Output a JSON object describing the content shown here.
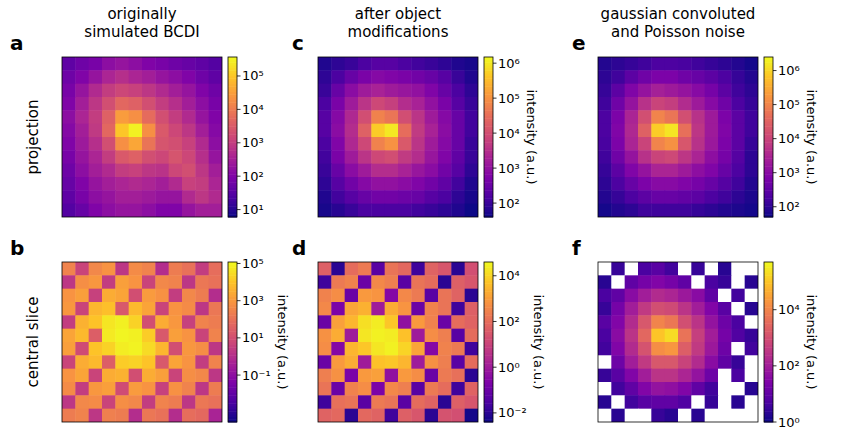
{
  "chart_data": [
    {
      "type": "heatmap",
      "panel": "a",
      "title": "originally simulated BCDI",
      "ylabel": "projection",
      "color": "plasma",
      "log": true,
      "tick_labels": false,
      "color_range": [
        6,
        370000
      ],
      "color_ticks": [
        {
          "value": 10,
          "label": "10¹"
        },
        {
          "value": 100,
          "label": "10²"
        },
        {
          "value": 1000,
          "label": "10³"
        },
        {
          "value": 10000,
          "label": "10⁴"
        },
        {
          "value": 100000,
          "label": "10⁵"
        }
      ],
      "cells": [
        [
          40,
          60,
          80,
          150,
          200,
          150,
          100,
          80,
          60,
          50,
          40,
          30
        ],
        [
          60,
          100,
          200,
          400,
          600,
          400,
          300,
          200,
          150,
          100,
          60,
          40
        ],
        [
          80,
          200,
          500,
          1000,
          1500,
          1200,
          800,
          500,
          300,
          200,
          100,
          60
        ],
        [
          100,
          300,
          800,
          2000,
          5000,
          4000,
          2000,
          1000,
          600,
          300,
          150,
          80
        ],
        [
          150,
          400,
          1000,
          4000,
          30000,
          20000,
          6000,
          2000,
          1000,
          500,
          200,
          100
        ],
        [
          120,
          300,
          900,
          5000,
          100000,
          300000,
          20000,
          3000,
          1500,
          800,
          300,
          120
        ],
        [
          100,
          250,
          600,
          2000,
          20000,
          40000,
          8000,
          2500,
          2000,
          1200,
          500,
          150
        ],
        [
          80,
          200,
          400,
          1000,
          3000,
          4000,
          2000,
          1500,
          2500,
          1500,
          600,
          200
        ],
        [
          60,
          150,
          300,
          500,
          1000,
          1200,
          800,
          700,
          1500,
          2000,
          800,
          300
        ],
        [
          50,
          100,
          200,
          300,
          400,
          500,
          400,
          300,
          500,
          1200,
          1000,
          400
        ],
        [
          40,
          80,
          150,
          200,
          300,
          300,
          250,
          200,
          200,
          500,
          800,
          500
        ],
        [
          30,
          50,
          100,
          150,
          200,
          200,
          150,
          100,
          100,
          200,
          300,
          300
        ]
      ]
    },
    {
      "type": "heatmap",
      "panel": "b",
      "ylabel": "central slice",
      "color": "plasma",
      "log": true,
      "tick_labels": false,
      "color_range": [
        0.0003,
        120000
      ],
      "color_label": "intensity (a.u.)",
      "color_ticks": [
        {
          "value": 0.1,
          "label": "10⁻¹"
        },
        {
          "value": 10,
          "label": "10¹"
        },
        {
          "value": 1000,
          "label": "10³"
        },
        {
          "value": 100000,
          "label": "10⁵"
        }
      ],
      "cells": [
        [
          300,
          5,
          400,
          800,
          2,
          500,
          300,
          1,
          200,
          100,
          3,
          80
        ],
        [
          2,
          600,
          1000,
          3,
          1500,
          800,
          5,
          400,
          300,
          2,
          150,
          100
        ],
        [
          800,
          1500,
          4,
          3000,
          2000,
          10,
          1200,
          700,
          3,
          400,
          200,
          1
        ],
        [
          1000,
          5,
          5000,
          8000,
          20,
          6000,
          2000,
          5,
          800,
          500,
          2,
          150
        ],
        [
          3,
          4000,
          10000,
          50000,
          80000,
          20000,
          10,
          3000,
          1000,
          4,
          300,
          200
        ],
        [
          2000,
          6000,
          30,
          60000,
          100000,
          80000,
          15000,
          20,
          1500,
          800,
          5,
          300
        ],
        [
          1500,
          8,
          10000,
          20000,
          70000,
          90000,
          30000,
          5000,
          10,
          1000,
          600,
          2
        ],
        [
          5,
          3000,
          6000,
          30,
          15000,
          20000,
          10000,
          20,
          2000,
          800,
          3,
          300
        ],
        [
          800,
          2000,
          5,
          3000,
          4000,
          10,
          3000,
          1500,
          5,
          600,
          400,
          2
        ],
        [
          500,
          3,
          1000,
          1500,
          8,
          1200,
          800,
          4,
          700,
          300,
          2,
          200
        ],
        [
          2,
          400,
          500,
          5,
          600,
          400,
          3,
          300,
          200,
          2,
          150,
          100
        ],
        [
          200,
          300,
          2,
          250,
          200,
          1,
          150,
          100,
          1,
          80,
          60,
          0.5
        ]
      ]
    },
    {
      "type": "heatmap",
      "panel": "c",
      "title": "after object modifications",
      "color": "plasma",
      "log": true,
      "tick_labels": false,
      "color_range": [
        40,
        1500000
      ],
      "color_label": "intensity (a.u.)",
      "color_ticks": [
        {
          "value": 100,
          "label": "10²"
        },
        {
          "value": 1000,
          "label": "10³"
        },
        {
          "value": 10000,
          "label": "10⁴"
        },
        {
          "value": 100000,
          "label": "10⁵"
        },
        {
          "value": 1000000,
          "label": "10⁶"
        }
      ],
      "cells": [
        [
          60,
          80,
          100,
          150,
          200,
          200,
          150,
          120,
          100,
          80,
          60,
          50
        ],
        [
          80,
          150,
          300,
          500,
          700,
          600,
          500,
          400,
          300,
          200,
          100,
          60
        ],
        [
          100,
          300,
          800,
          1500,
          2000,
          1500,
          1200,
          1000,
          600,
          300,
          150,
          80
        ],
        [
          150,
          500,
          1500,
          4000,
          8000,
          6000,
          3000,
          2000,
          1000,
          500,
          200,
          100
        ],
        [
          200,
          700,
          2500,
          10000,
          60000,
          40000,
          10000,
          4000,
          1500,
          700,
          300,
          120
        ],
        [
          200,
          800,
          3000,
          20000,
          500000,
          1000000,
          30000,
          5000,
          2000,
          800,
          300,
          120
        ],
        [
          150,
          600,
          2500,
          8000,
          60000,
          100000,
          15000,
          4000,
          1500,
          700,
          300,
          100
        ],
        [
          120,
          500,
          1500,
          4000,
          8000,
          10000,
          5000,
          3000,
          1200,
          600,
          250,
          100
        ],
        [
          100,
          300,
          800,
          1500,
          3000,
          3000,
          2000,
          1200,
          800,
          400,
          200,
          80
        ],
        [
          80,
          200,
          400,
          700,
          1000,
          1000,
          800,
          600,
          400,
          250,
          120,
          60
        ],
        [
          60,
          120,
          200,
          300,
          400,
          400,
          350,
          300,
          200,
          150,
          80,
          50
        ],
        [
          50,
          70,
          100,
          150,
          150,
          150,
          150,
          120,
          100,
          80,
          60,
          40
        ]
      ]
    },
    {
      "type": "heatmap",
      "panel": "d",
      "color": "plasma",
      "log": true,
      "tick_labels": false,
      "color_range": [
        0.004,
        40000
      ],
      "color_label": "intensity (a.u.)",
      "color_ticks": [
        {
          "value": 0.01,
          "label": "10⁻²"
        },
        {
          "value": 1,
          "label": "10⁰"
        },
        {
          "value": 100,
          "label": "10²"
        },
        {
          "value": 10000,
          "label": "10⁴"
        }
      ],
      "cells": [
        [
          50,
          0.01,
          100,
          200,
          0.05,
          150,
          80,
          0.02,
          60,
          30,
          0.01,
          20
        ],
        [
          0.02,
          200,
          300,
          0.1,
          400,
          250,
          0.05,
          150,
          100,
          0.01,
          50,
          30
        ],
        [
          300,
          500,
          0.1,
          900,
          700,
          0.3,
          400,
          200,
          0.05,
          150,
          60,
          0.01
        ],
        [
          400,
          0.2,
          1500,
          2500,
          1,
          2000,
          700,
          0.1,
          300,
          150,
          0.02,
          50
        ],
        [
          0.1,
          1200,
          3000,
          15000,
          25000,
          6000,
          0.5,
          900,
          300,
          0.1,
          100,
          60
        ],
        [
          600,
          2000,
          1,
          20000,
          30000,
          25000,
          5000,
          1,
          500,
          250,
          0.05,
          100
        ],
        [
          500,
          0.3,
          3000,
          6000,
          20000,
          30000,
          10000,
          1500,
          0.3,
          300,
          200,
          0.02
        ],
        [
          0.1,
          900,
          2000,
          1,
          5000,
          6000,
          3000,
          1,
          600,
          250,
          0.05,
          100
        ],
        [
          250,
          600,
          0.2,
          900,
          1200,
          0.5,
          900,
          500,
          0.1,
          200,
          120,
          0.01
        ],
        [
          150,
          0.1,
          300,
          500,
          0.2,
          400,
          250,
          0.05,
          200,
          100,
          0.02,
          60
        ],
        [
          0.02,
          120,
          150,
          0.05,
          200,
          150,
          0.05,
          100,
          60,
          0.01,
          50,
          30
        ],
        [
          60,
          80,
          0.01,
          80,
          60,
          0.02,
          50,
          30,
          0.01,
          25,
          20,
          0.005
        ]
      ]
    },
    {
      "type": "heatmap",
      "panel": "e",
      "title": "gaussian convoluted and Poisson noise",
      "color": "plasma",
      "log": true,
      "tick_labels": false,
      "color_range": [
        50,
        2500000
      ],
      "color_label": "intensity (a.u.)",
      "color_ticks": [
        {
          "value": 100,
          "label": "10²"
        },
        {
          "value": 1000,
          "label": "10³"
        },
        {
          "value": 10000,
          "label": "10⁴"
        },
        {
          "value": 100000,
          "label": "10⁵"
        },
        {
          "value": 1000000,
          "label": "10⁶"
        }
      ],
      "cells": [
        [
          80,
          100,
          120,
          150,
          200,
          200,
          180,
          150,
          120,
          100,
          80,
          60
        ],
        [
          100,
          150,
          300,
          500,
          700,
          700,
          500,
          400,
          300,
          200,
          120,
          80
        ],
        [
          120,
          300,
          800,
          1500,
          2500,
          2000,
          1500,
          1000,
          600,
          300,
          150,
          100
        ],
        [
          150,
          500,
          1500,
          5000,
          10000,
          8000,
          4000,
          2000,
          1000,
          500,
          200,
          120
        ],
        [
          200,
          700,
          3000,
          15000,
          100000,
          60000,
          15000,
          5000,
          2000,
          700,
          300,
          150
        ],
        [
          200,
          800,
          3500,
          30000,
          800000,
          1500000,
          50000,
          6000,
          2000,
          800,
          300,
          150
        ],
        [
          180,
          700,
          3000,
          10000,
          100000,
          150000,
          20000,
          5000,
          1800,
          700,
          300,
          120
        ],
        [
          150,
          500,
          1500,
          5000,
          10000,
          12000,
          6000,
          3000,
          1200,
          600,
          250,
          100
        ],
        [
          120,
          300,
          800,
          1500,
          3000,
          3000,
          2000,
          1200,
          800,
          400,
          200,
          100
        ],
        [
          100,
          200,
          400,
          700,
          1000,
          1000,
          800,
          600,
          400,
          250,
          150,
          80
        ],
        [
          80,
          120,
          200,
          300,
          400,
          400,
          350,
          300,
          200,
          150,
          100,
          70
        ],
        [
          60,
          80,
          100,
          150,
          150,
          150,
          150,
          120,
          100,
          80,
          70,
          60
        ]
      ]
    },
    {
      "type": "heatmap",
      "panel": "f",
      "color": "plasma",
      "log": true,
      "tick_labels": false,
      "color_range": [
        1,
        500000
      ],
      "color_label": "intensity (a.u.)",
      "color_ticks": [
        {
          "value": 1,
          "label": "10⁰"
        },
        {
          "value": 100,
          "label": "10²"
        },
        {
          "value": 10000,
          "label": "10⁴"
        }
      ],
      "cells": [
        [
          0,
          3,
          0,
          5,
          8,
          4,
          0,
          3,
          0,
          2,
          0,
          0
        ],
        [
          2,
          0,
          10,
          20,
          30,
          20,
          10,
          0,
          5,
          3,
          0,
          2
        ],
        [
          5,
          10,
          40,
          100,
          200,
          150,
          80,
          40,
          10,
          0,
          4,
          0
        ],
        [
          3,
          20,
          100,
          400,
          1000,
          800,
          300,
          100,
          30,
          8,
          0,
          2
        ],
        [
          8,
          30,
          200,
          1500,
          10000,
          6000,
          1000,
          300,
          60,
          15,
          5,
          0
        ],
        [
          5,
          40,
          300,
          3000,
          100000,
          200000,
          5000,
          500,
          100,
          20,
          6,
          3
        ],
        [
          4,
          30,
          200,
          1200,
          15000,
          20000,
          2000,
          400,
          80,
          15,
          0,
          4
        ],
        [
          0,
          15,
          100,
          400,
          1500,
          1500,
          600,
          200,
          40,
          10,
          3,
          0
        ],
        [
          3,
          8,
          30,
          100,
          300,
          300,
          150,
          60,
          15,
          0,
          5,
          0
        ],
        [
          0,
          4,
          10,
          30,
          60,
          50,
          30,
          10,
          4,
          0,
          0,
          2
        ],
        [
          2,
          0,
          4,
          8,
          10,
          10,
          6,
          0,
          3,
          0,
          2,
          0
        ],
        [
          0,
          2,
          0,
          0,
          3,
          2,
          0,
          2,
          0,
          0,
          0,
          0
        ]
      ]
    }
  ]
}
